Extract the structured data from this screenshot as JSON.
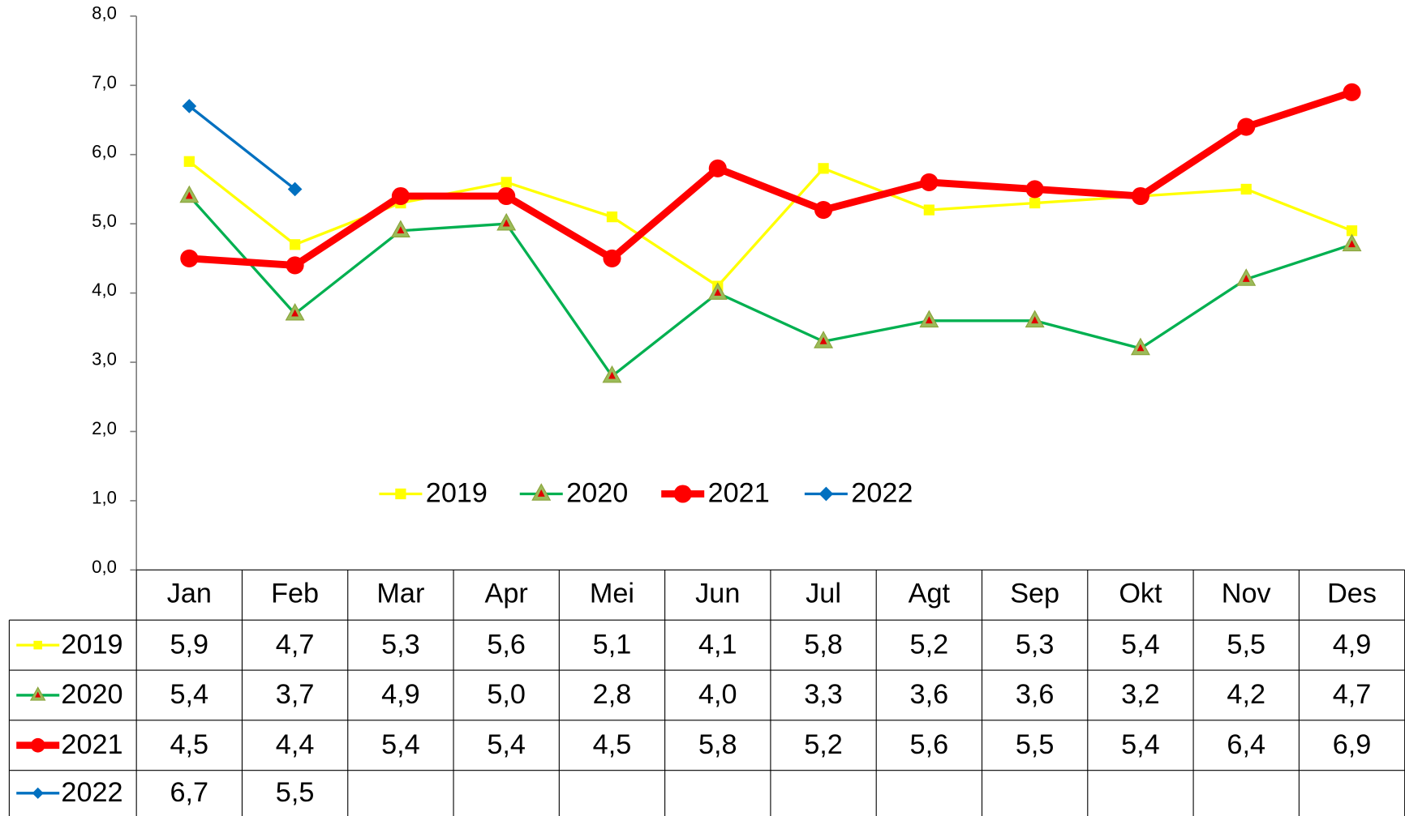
{
  "chart_data": {
    "type": "line",
    "categories": [
      "Jan",
      "Feb",
      "Mar",
      "Apr",
      "Mei",
      "Jun",
      "Jul",
      "Agt",
      "Sep",
      "Okt",
      "Nov",
      "Des"
    ],
    "series": [
      {
        "name": "2019",
        "color": "#ffff00",
        "marker": "square",
        "values": [
          5.9,
          4.7,
          5.3,
          5.6,
          5.1,
          4.1,
          5.8,
          5.2,
          5.3,
          5.4,
          5.5,
          4.9
        ],
        "value_labels": [
          "5,9",
          "4,7",
          "5,3",
          "5,6",
          "5,1",
          "4,1",
          "5,8",
          "5,2",
          "5,3",
          "5,4",
          "5,5",
          "4,9"
        ]
      },
      {
        "name": "2020",
        "color": "#00b050",
        "marker": "triangle",
        "values": [
          5.4,
          3.7,
          4.9,
          5.0,
          2.8,
          4.0,
          3.3,
          3.6,
          3.6,
          3.2,
          4.2,
          4.7
        ],
        "value_labels": [
          "5,4",
          "3,7",
          "4,9",
          "5,0",
          "2,8",
          "4,0",
          "3,3",
          "3,6",
          "3,6",
          "3,2",
          "4,2",
          "4,7"
        ]
      },
      {
        "name": "2021",
        "color": "#ff0000",
        "marker": "circle",
        "values": [
          4.5,
          4.4,
          5.4,
          5.4,
          4.5,
          5.8,
          5.2,
          5.6,
          5.5,
          5.4,
          6.4,
          6.9
        ],
        "value_labels": [
          "4,5",
          "4,4",
          "5,4",
          "5,4",
          "4,5",
          "5,8",
          "5,2",
          "5,6",
          "5,5",
          "5,4",
          "6,4",
          "6,9"
        ]
      },
      {
        "name": "2022",
        "color": "#0070c0",
        "marker": "diamond",
        "values": [
          6.7,
          5.5,
          null,
          null,
          null,
          null,
          null,
          null,
          null,
          null,
          null,
          null
        ],
        "value_labels": [
          "6,7",
          "5,5",
          null,
          null,
          null,
          null,
          null,
          null,
          null,
          null,
          null,
          null
        ]
      }
    ],
    "ylim": [
      0,
      8
    ],
    "yticks": [
      {
        "value": 0,
        "label": "0,0"
      },
      {
        "value": 1,
        "label": "1,0"
      },
      {
        "value": 2,
        "label": "2,0"
      },
      {
        "value": 3,
        "label": "3,0"
      },
      {
        "value": 4,
        "label": "4,0"
      },
      {
        "value": 5,
        "label": "5,0"
      },
      {
        "value": 6,
        "label": "6,0"
      },
      {
        "value": 7,
        "label": "7,0"
      },
      {
        "value": 8,
        "label": "8,0"
      }
    ],
    "legend": "center",
    "grid": false,
    "data_table": true
  }
}
